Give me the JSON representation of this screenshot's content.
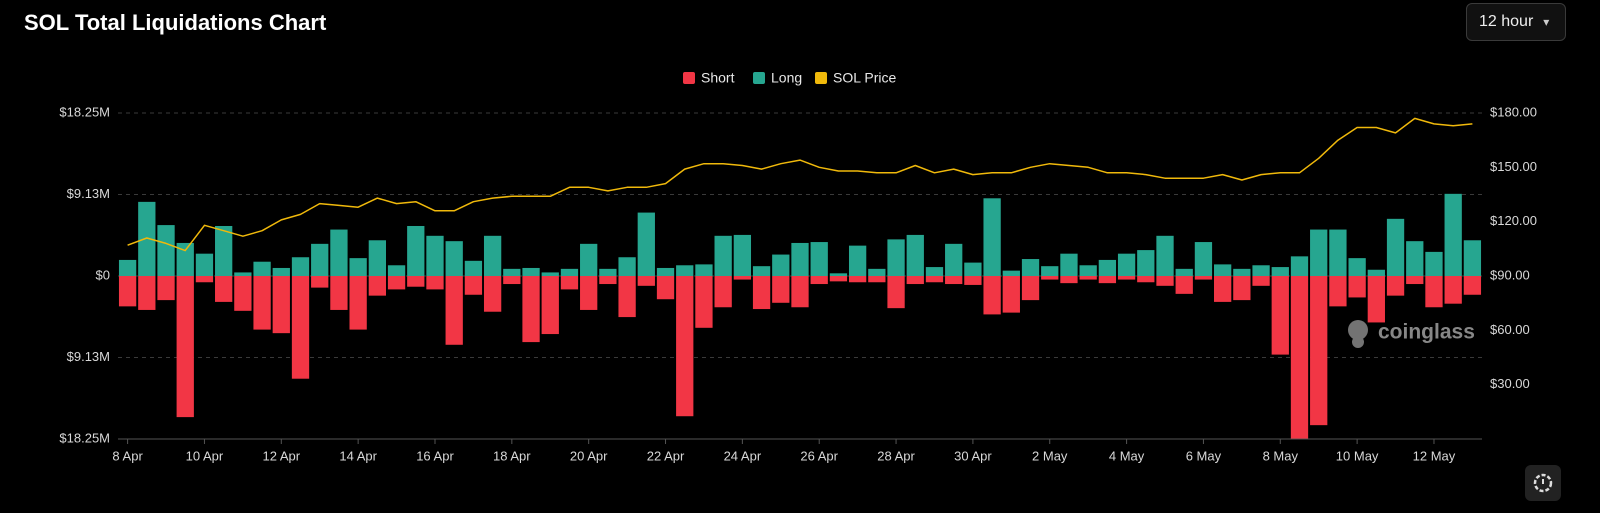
{
  "header": {
    "title": "SOL Total Liquidations Chart",
    "interval": "12 hour"
  },
  "watermark": "coinglass",
  "chart_data": {
    "type": "bar",
    "categories": [
      "8 Apr",
      null,
      null,
      null,
      "10 Apr",
      null,
      null,
      null,
      "12 Apr",
      null,
      null,
      null,
      "14 Apr",
      null,
      null,
      null,
      "16 Apr",
      null,
      null,
      null,
      "18 Apr",
      null,
      null,
      null,
      "20 Apr",
      null,
      null,
      null,
      "22 Apr",
      null,
      null,
      null,
      "24 Apr",
      null,
      null,
      null,
      "26 Apr",
      null,
      null,
      null,
      "28 Apr",
      null,
      null,
      null,
      "30 Apr",
      null,
      null,
      null,
      "2 May",
      null,
      null,
      null,
      "4 May",
      null,
      null,
      null,
      "6 May",
      null,
      null,
      null,
      "8 May",
      null,
      null,
      null,
      "10 May",
      null,
      null,
      null,
      "12 May",
      null,
      null
    ],
    "series": [
      {
        "name": "Short",
        "color": "#f23645",
        "values": [
          -3.4,
          -3.8,
          -2.7,
          -15.8,
          -0.7,
          -2.9,
          -3.9,
          -6.0,
          -6.4,
          -11.5,
          -1.3,
          -3.8,
          -6.0,
          -2.2,
          -1.5,
          -1.2,
          -1.5,
          -7.7,
          -2.1,
          -4.0,
          -0.9,
          -7.4,
          -6.5,
          -1.5,
          -3.8,
          -0.9,
          -4.6,
          -1.1,
          -2.6,
          -15.7,
          -5.8,
          -3.5,
          -0.4,
          -3.7,
          -3.0,
          -3.5,
          -0.9,
          -0.6,
          -0.7,
          -0.7,
          -3.6,
          -0.9,
          -0.7,
          -0.9,
          -1.0,
          -4.3,
          -4.1,
          -2.7,
          -0.4,
          -0.8,
          -0.4,
          -0.8,
          -0.4,
          -0.7,
          -1.1,
          -2.0,
          -0.4,
          -2.9,
          -2.7,
          -1.1,
          -8.8,
          -18.2,
          -16.7,
          -3.4,
          -2.4,
          -5.2,
          -2.2,
          -0.9,
          -3.5,
          -3.1,
          -2.1
        ]
      },
      {
        "name": "Long",
        "color": "#26a690",
        "values": [
          1.8,
          8.3,
          5.7,
          3.7,
          2.5,
          5.6,
          0.4,
          1.6,
          0.9,
          2.1,
          3.6,
          5.2,
          2.0,
          4.0,
          1.2,
          5.6,
          4.5,
          3.9,
          1.7,
          4.5,
          0.8,
          0.9,
          0.4,
          0.8,
          3.6,
          0.8,
          2.1,
          7.1,
          0.9,
          1.2,
          1.3,
          4.5,
          4.6,
          1.1,
          2.4,
          3.7,
          3.8,
          0.3,
          3.4,
          0.8,
          4.1,
          4.6,
          1.0,
          3.6,
          1.5,
          8.7,
          0.6,
          1.9,
          1.1,
          2.5,
          1.2,
          1.8,
          2.5,
          2.9,
          4.5,
          0.8,
          3.8,
          1.3,
          0.8,
          1.2,
          1.0,
          2.2,
          5.2,
          5.2,
          2.0,
          0.7,
          6.4,
          3.9,
          2.7,
          9.2,
          4.0
        ]
      },
      {
        "name": "SOL Price",
        "type": "line",
        "axis": "y2",
        "color": "#f0b90b",
        "values": [
          107,
          111,
          108,
          104,
          118,
          115,
          112,
          115,
          121,
          124,
          130,
          129,
          128,
          133,
          130,
          131,
          126,
          126,
          131,
          133,
          134,
          134,
          134,
          139,
          139,
          137,
          139,
          139,
          141,
          149,
          152,
          152,
          151,
          149,
          152,
          154,
          150,
          148,
          148,
          147,
          147,
          151,
          147,
          149,
          146,
          147,
          147,
          150,
          152,
          151,
          150,
          147,
          147,
          146,
          144,
          144,
          144,
          146,
          143,
          146,
          147,
          147,
          155,
          165,
          172,
          172,
          169,
          177,
          174,
          173,
          174
        ]
      }
    ],
    "ylim": [
      -18.25,
      18.25
    ],
    "yticks": [
      {
        "value": -18.25,
        "label": "$18.25M"
      },
      {
        "value": -9.125,
        "label": "$9.13M"
      },
      {
        "value": 0,
        "label": "$0"
      },
      {
        "value": 9.125,
        "label": "$9.13M"
      },
      {
        "value": 18.25,
        "label": "$18.25M"
      }
    ],
    "y2lim": [
      0,
      180
    ],
    "y2ticks": [
      {
        "value": 30,
        "label": "$30.00"
      },
      {
        "value": 60,
        "label": "$60.00"
      },
      {
        "value": 90,
        "label": "$90.00"
      },
      {
        "value": 120,
        "label": "$120.00"
      },
      {
        "value": 150,
        "label": "$150.00"
      },
      {
        "value": 180,
        "label": "$180.00"
      }
    ],
    "grid": true,
    "legend": "top"
  }
}
